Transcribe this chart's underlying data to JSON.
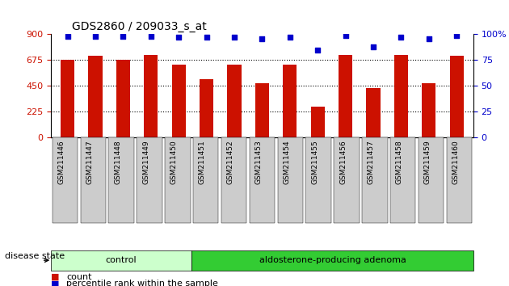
{
  "title": "GDS2860 / 209033_s_at",
  "categories": [
    "GSM211446",
    "GSM211447",
    "GSM211448",
    "GSM211449",
    "GSM211450",
    "GSM211451",
    "GSM211452",
    "GSM211453",
    "GSM211454",
    "GSM211455",
    "GSM211456",
    "GSM211457",
    "GSM211458",
    "GSM211459",
    "GSM211460"
  ],
  "bar_values": [
    675,
    710,
    675,
    718,
    635,
    510,
    635,
    470,
    635,
    270,
    720,
    430,
    720,
    470,
    710
  ],
  "percentile_values": [
    98,
    98,
    98,
    98,
    97,
    97,
    97,
    96,
    97,
    85,
    99,
    88,
    97,
    96,
    99
  ],
  "bar_color": "#CC1100",
  "percentile_color": "#0000CC",
  "ylim_left": [
    0,
    900
  ],
  "ylim_right": [
    0,
    100
  ],
  "yticks_left": [
    0,
    225,
    450,
    675,
    900
  ],
  "yticks_right": [
    0,
    25,
    50,
    75,
    100
  ],
  "grid_values": [
    225,
    450,
    675
  ],
  "control_count": 5,
  "adenoma_count": 10,
  "control_label": "control",
  "adenoma_label": "aldosterone-producing adenoma",
  "disease_state_label": "disease state",
  "legend_count_label": "count",
  "legend_percentile_label": "percentile rank within the sample",
  "control_color": "#CCFFCC",
  "adenoma_color": "#33CC33",
  "tick_label_bg": "#CCCCCC",
  "figure_width": 6.3,
  "figure_height": 3.54
}
